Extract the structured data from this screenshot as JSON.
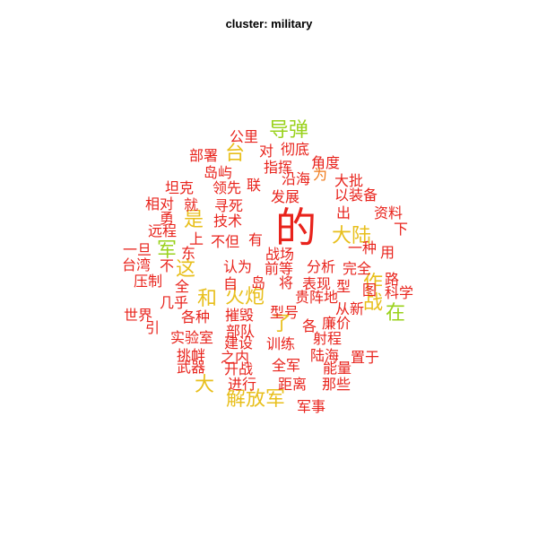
{
  "title": "cluster: military",
  "colors": {
    "red": "#e8231c",
    "orange": "#f07a1a",
    "yellow": "#e8bf1c",
    "green": "#9ad21c"
  },
  "words": [
    {
      "text": "的",
      "color": "red",
      "size": 3
    },
    {
      "text": "导弹",
      "color": "green",
      "size": 2
    },
    {
      "text": "大陆",
      "color": "yellow",
      "size": 2
    },
    {
      "text": "在",
      "color": "green",
      "size": 2
    },
    {
      "text": "火炮",
      "color": "yellow",
      "size": 2
    },
    {
      "text": "了",
      "color": "yellow",
      "size": 2
    },
    {
      "text": "是",
      "color": "yellow",
      "size": 2
    },
    {
      "text": "台",
      "color": "yellow",
      "size": 2
    },
    {
      "text": "军",
      "color": "green",
      "size": 2
    },
    {
      "text": "和",
      "color": "yellow",
      "size": 2
    },
    {
      "text": "这",
      "color": "yellow",
      "size": 2
    },
    {
      "text": "大",
      "color": "yellow",
      "size": 2
    },
    {
      "text": "解放军",
      "color": "yellow",
      "size": 2
    },
    {
      "text": "作战",
      "color": "yellow",
      "size": 2,
      "vertical": true
    },
    {
      "text": "公里",
      "color": "red",
      "size": 1
    },
    {
      "text": "部署",
      "color": "red",
      "size": 1
    },
    {
      "text": "对",
      "color": "red",
      "size": 1
    },
    {
      "text": "彻底",
      "color": "red",
      "size": 1
    },
    {
      "text": "角度",
      "color": "red",
      "size": 1
    },
    {
      "text": "岛屿",
      "color": "red",
      "size": 1
    },
    {
      "text": "指挥",
      "color": "red",
      "size": 1
    },
    {
      "text": "大批",
      "color": "red",
      "size": 1
    },
    {
      "text": "坦克",
      "color": "red",
      "size": 1
    },
    {
      "text": "领先",
      "color": "red",
      "size": 1
    },
    {
      "text": "联",
      "color": "red",
      "size": 1
    },
    {
      "text": "沿海",
      "color": "red",
      "size": 1
    },
    {
      "text": "为",
      "color": "orange",
      "size": 1
    },
    {
      "text": "以装备",
      "color": "red",
      "size": 1
    },
    {
      "text": "相对",
      "color": "red",
      "size": 1
    },
    {
      "text": "就",
      "color": "red",
      "size": 1
    },
    {
      "text": "寻死",
      "color": "red",
      "size": 1
    },
    {
      "text": "发展",
      "color": "red",
      "size": 1
    },
    {
      "text": "出",
      "color": "red",
      "size": 1
    },
    {
      "text": "资料",
      "color": "red",
      "size": 1
    },
    {
      "text": "勇",
      "color": "red",
      "size": 1
    },
    {
      "text": "技术",
      "color": "red",
      "size": 1
    },
    {
      "text": "下",
      "color": "red",
      "size": 1
    },
    {
      "text": "远程",
      "color": "red",
      "size": 1
    },
    {
      "text": "上",
      "color": "red",
      "size": 1
    },
    {
      "text": "不但",
      "color": "red",
      "size": 1
    },
    {
      "text": "有",
      "color": "red",
      "size": 1
    },
    {
      "text": "一种",
      "color": "red",
      "size": 1
    },
    {
      "text": "用",
      "color": "red",
      "size": 1
    },
    {
      "text": "一旦",
      "color": "red",
      "size": 1
    },
    {
      "text": "东",
      "color": "red",
      "size": 1
    },
    {
      "text": "战场",
      "color": "red",
      "size": 1
    },
    {
      "text": "台湾",
      "color": "red",
      "size": 1
    },
    {
      "text": "不",
      "color": "red",
      "size": 1
    },
    {
      "text": "认为",
      "color": "red",
      "size": 1
    },
    {
      "text": "前等",
      "color": "red",
      "size": 1
    },
    {
      "text": "分析",
      "color": "red",
      "size": 1
    },
    {
      "text": "完全",
      "color": "red",
      "size": 1
    },
    {
      "text": "路",
      "color": "red",
      "size": 1
    },
    {
      "text": "压制",
      "color": "red",
      "size": 1
    },
    {
      "text": "全",
      "color": "red",
      "size": 1
    },
    {
      "text": "自",
      "color": "red",
      "size": 1
    },
    {
      "text": "岛",
      "color": "red",
      "size": 1
    },
    {
      "text": "将",
      "color": "red",
      "size": 1
    },
    {
      "text": "表现",
      "color": "red",
      "size": 1
    },
    {
      "text": "型",
      "color": "red",
      "size": 1
    },
    {
      "text": "图",
      "color": "red",
      "size": 1
    },
    {
      "text": "科学",
      "color": "red",
      "size": 1
    },
    {
      "text": "几乎",
      "color": "red",
      "size": 1
    },
    {
      "text": "贵阵地",
      "color": "red",
      "size": 1
    },
    {
      "text": "世界",
      "color": "red",
      "size": 1
    },
    {
      "text": "各种",
      "color": "red",
      "size": 1
    },
    {
      "text": "摧毁",
      "color": "red",
      "size": 1
    },
    {
      "text": "型号",
      "color": "red",
      "size": 1
    },
    {
      "text": "从新",
      "color": "red",
      "size": 1
    },
    {
      "text": "廉价",
      "color": "red",
      "size": 1
    },
    {
      "text": "引",
      "color": "red",
      "size": 1
    },
    {
      "text": "部队",
      "color": "red",
      "size": 1
    },
    {
      "text": "各",
      "color": "red",
      "size": 1
    },
    {
      "text": "实验室",
      "color": "red",
      "size": 1
    },
    {
      "text": "建设",
      "color": "red",
      "size": 1
    },
    {
      "text": "训练",
      "color": "red",
      "size": 1
    },
    {
      "text": "射程",
      "color": "red",
      "size": 1
    },
    {
      "text": "挑衅",
      "color": "red",
      "size": 1
    },
    {
      "text": "之内",
      "color": "red",
      "size": 1
    },
    {
      "text": "陆海",
      "color": "red",
      "size": 1
    },
    {
      "text": "置于",
      "color": "red",
      "size": 1
    },
    {
      "text": "武器",
      "color": "red",
      "size": 1
    },
    {
      "text": "开战",
      "color": "red",
      "size": 1
    },
    {
      "text": "全军",
      "color": "red",
      "size": 1
    },
    {
      "text": "能量",
      "color": "red",
      "size": 1
    },
    {
      "text": "进行",
      "color": "red",
      "size": 1
    },
    {
      "text": "距离",
      "color": "red",
      "size": 1
    },
    {
      "text": "那些",
      "color": "red",
      "size": 1
    },
    {
      "text": "军事",
      "color": "red",
      "size": 1
    }
  ]
}
